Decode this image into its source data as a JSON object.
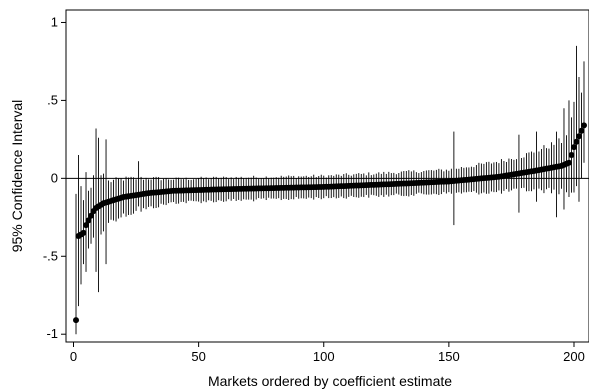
{
  "chart_data": {
    "type": "scatter",
    "title": "",
    "xlabel": "Markets ordered by coefficient estimate",
    "ylabel": "95% Confidence Interval",
    "xlim": [
      -3,
      206
    ],
    "ylim": [
      -1.05,
      1.08
    ],
    "x_ticks": [
      0,
      50,
      100,
      150,
      200
    ],
    "x_tick_labels": [
      "0",
      "50",
      "100",
      "150",
      "200"
    ],
    "y_ticks": [
      -1,
      -0.5,
      0,
      0.5,
      1
    ],
    "y_tick_labels": [
      "-1",
      "-.5",
      "0",
      ".5",
      "1"
    ],
    "reference_line_y": 0,
    "grid": false,
    "n_markets": 204,
    "marker_color": "#000000",
    "ci_color": "#000000",
    "points": [
      {
        "x": 1,
        "estimate": -0.91,
        "lower": -1.0,
        "upper": -0.1
      },
      {
        "x": 2,
        "estimate": -0.37,
        "lower": -0.82,
        "upper": 0.15
      },
      {
        "x": 3,
        "estimate": -0.36,
        "lower": -0.68,
        "upper": -0.05
      },
      {
        "x": 4,
        "estimate": -0.35,
        "lower": -0.55,
        "upper": -0.14
      },
      {
        "x": 5,
        "estimate": -0.3,
        "lower": -0.6,
        "upper": 0.04
      },
      {
        "x": 6,
        "estimate": -0.27,
        "lower": -0.45,
        "upper": -0.08
      },
      {
        "x": 7,
        "estimate": -0.24,
        "lower": -0.42,
        "upper": -0.06
      },
      {
        "x": 8,
        "estimate": -0.21,
        "lower": -0.38,
        "upper": 0.02
      },
      {
        "x": 9,
        "estimate": -0.19,
        "lower": -0.6,
        "upper": 0.32
      },
      {
        "x": 10,
        "estimate": -0.18,
        "lower": -0.73,
        "upper": 0.26
      },
      {
        "x": 11,
        "estimate": -0.17,
        "lower": -0.36,
        "upper": 0.02
      },
      {
        "x": 12,
        "estimate": -0.16,
        "lower": -0.34,
        "upper": 0.03
      },
      {
        "x": 13,
        "estimate": -0.155,
        "lower": -0.55,
        "upper": 0.25
      }
    ]
  }
}
